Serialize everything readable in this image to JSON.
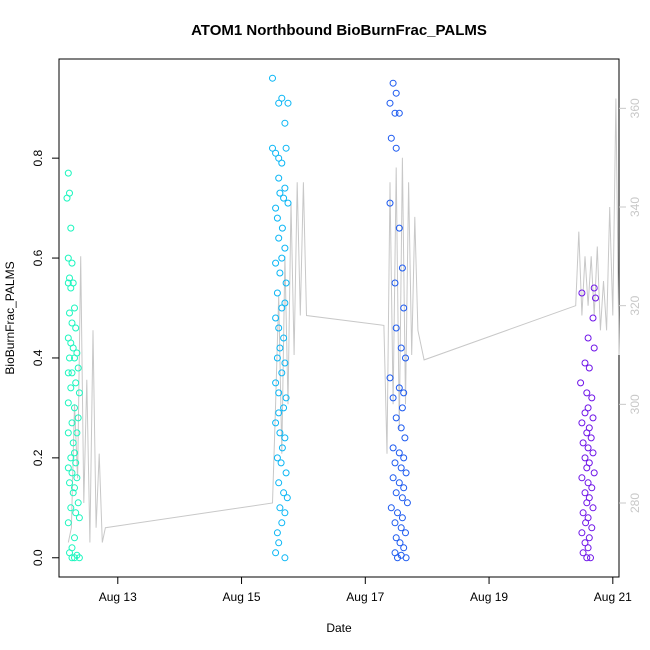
{
  "chart_data": {
    "type": "scatter",
    "title": "ATOM1 Northbound BioBurnFrac_PALMS",
    "xlabel": "Date",
    "ylabel": "BioBurnFrac_PALMS",
    "x_ticks": [
      "Aug 13",
      "Aug 15",
      "Aug 17",
      "Aug 19",
      "Aug 21"
    ],
    "x_tick_days": [
      13,
      15,
      17,
      19,
      21
    ],
    "xlim_days": [
      12.05,
      21.1
    ],
    "y_ticks": [
      0.0,
      0.2,
      0.4,
      0.6,
      0.8
    ],
    "y_tick_labels": [
      "0.0",
      "0.2",
      "0.4",
      "0.6",
      "0.8"
    ],
    "ylim": [
      -0.0385,
      0.9985
    ],
    "y2_ticks": [
      280,
      300,
      320,
      340,
      360
    ],
    "y2_tick_labels": [
      "280",
      "300",
      "320",
      "340",
      "360"
    ],
    "y2lim": [
      265,
      370
    ],
    "grid": false,
    "legend": "none",
    "line_color": "#c8c8c8",
    "secondary_series_line": [
      [
        12.2,
        272
      ],
      [
        12.25,
        275
      ],
      [
        12.3,
        300
      ],
      [
        12.35,
        285
      ],
      [
        12.4,
        330
      ],
      [
        12.45,
        280
      ],
      [
        12.5,
        305
      ],
      [
        12.55,
        272
      ],
      [
        12.6,
        315
      ],
      [
        12.65,
        275
      ],
      [
        12.7,
        290
      ],
      [
        12.75,
        272
      ],
      [
        12.8,
        275
      ],
      [
        15.5,
        280
      ],
      [
        15.55,
        300
      ],
      [
        15.6,
        322
      ],
      [
        15.65,
        290
      ],
      [
        15.7,
        330
      ],
      [
        15.75,
        300
      ],
      [
        15.8,
        341
      ],
      [
        15.85,
        310
      ],
      [
        15.9,
        345
      ],
      [
        15.95,
        318
      ],
      [
        16.0,
        345
      ],
      [
        16.05,
        318
      ],
      [
        17.3,
        316
      ],
      [
        17.35,
        290
      ],
      [
        17.4,
        345
      ],
      [
        17.45,
        300
      ],
      [
        17.5,
        348
      ],
      [
        17.55,
        295
      ],
      [
        17.6,
        350
      ],
      [
        17.65,
        300
      ],
      [
        17.7,
        345
      ],
      [
        17.75,
        310
      ],
      [
        17.8,
        338
      ],
      [
        17.85,
        315
      ],
      [
        17.9,
        312
      ],
      [
        17.95,
        309
      ],
      [
        20.4,
        320
      ],
      [
        20.45,
        335
      ],
      [
        20.5,
        318
      ],
      [
        20.55,
        330
      ],
      [
        20.6,
        320
      ],
      [
        20.65,
        330
      ],
      [
        20.7,
        318
      ],
      [
        20.75,
        332
      ],
      [
        20.8,
        315
      ],
      [
        20.85,
        325
      ],
      [
        20.9,
        315
      ],
      [
        20.95,
        340
      ],
      [
        21.0,
        318
      ],
      [
        21.05,
        362
      ],
      [
        21.1,
        310
      ]
    ],
    "series": [
      {
        "color": "#1af6be",
        "points": [
          [
            12.2,
            0.77
          ],
          [
            12.22,
            0.73
          ],
          [
            12.18,
            0.72
          ],
          [
            12.24,
            0.66
          ],
          [
            12.2,
            0.6
          ],
          [
            12.26,
            0.59
          ],
          [
            12.22,
            0.56
          ],
          [
            12.28,
            0.55
          ],
          [
            12.2,
            0.55
          ],
          [
            12.24,
            0.54
          ],
          [
            12.3,
            0.5
          ],
          [
            12.22,
            0.49
          ],
          [
            12.26,
            0.47
          ],
          [
            12.32,
            0.46
          ],
          [
            12.2,
            0.44
          ],
          [
            12.24,
            0.43
          ],
          [
            12.28,
            0.42
          ],
          [
            12.34,
            0.41
          ],
          [
            12.22,
            0.4
          ],
          [
            12.3,
            0.4
          ],
          [
            12.36,
            0.38
          ],
          [
            12.2,
            0.37
          ],
          [
            12.26,
            0.37
          ],
          [
            12.32,
            0.35
          ],
          [
            12.24,
            0.34
          ],
          [
            12.38,
            0.33
          ],
          [
            12.2,
            0.31
          ],
          [
            12.3,
            0.3
          ],
          [
            12.36,
            0.28
          ],
          [
            12.26,
            0.27
          ],
          [
            12.34,
            0.25
          ],
          [
            12.2,
            0.25
          ],
          [
            12.28,
            0.23
          ],
          [
            12.3,
            0.21
          ],
          [
            12.24,
            0.2
          ],
          [
            12.32,
            0.19
          ],
          [
            12.2,
            0.18
          ],
          [
            12.26,
            0.17
          ],
          [
            12.34,
            0.16
          ],
          [
            12.22,
            0.15
          ],
          [
            12.3,
            0.14
          ],
          [
            12.28,
            0.13
          ],
          [
            12.36,
            0.11
          ],
          [
            12.24,
            0.1
          ],
          [
            12.32,
            0.09
          ],
          [
            12.38,
            0.08
          ],
          [
            12.2,
            0.07
          ],
          [
            12.3,
            0.04
          ],
          [
            12.26,
            0.02
          ],
          [
            12.22,
            0.01
          ],
          [
            12.34,
            0.005
          ],
          [
            12.3,
            0.0
          ],
          [
            12.38,
            0.0
          ],
          [
            12.26,
            0.0
          ]
        ]
      },
      {
        "color": "#0ab6f5",
        "points": [
          [
            15.5,
            0.96
          ],
          [
            15.65,
            0.92
          ],
          [
            15.6,
            0.91
          ],
          [
            15.75,
            0.91
          ],
          [
            15.7,
            0.87
          ],
          [
            15.5,
            0.82
          ],
          [
            15.55,
            0.81
          ],
          [
            15.6,
            0.8
          ],
          [
            15.72,
            0.82
          ],
          [
            15.65,
            0.79
          ],
          [
            15.6,
            0.76
          ],
          [
            15.7,
            0.74
          ],
          [
            15.62,
            0.73
          ],
          [
            15.68,
            0.72
          ],
          [
            15.75,
            0.71
          ],
          [
            15.55,
            0.7
          ],
          [
            15.58,
            0.68
          ],
          [
            15.66,
            0.66
          ],
          [
            15.6,
            0.64
          ],
          [
            15.7,
            0.62
          ],
          [
            15.65,
            0.6
          ],
          [
            15.55,
            0.59
          ],
          [
            15.62,
            0.57
          ],
          [
            15.72,
            0.55
          ],
          [
            15.58,
            0.53
          ],
          [
            15.7,
            0.51
          ],
          [
            15.65,
            0.5
          ],
          [
            15.55,
            0.48
          ],
          [
            15.6,
            0.46
          ],
          [
            15.68,
            0.44
          ],
          [
            15.62,
            0.42
          ],
          [
            15.58,
            0.4
          ],
          [
            15.7,
            0.39
          ],
          [
            15.65,
            0.37
          ],
          [
            15.55,
            0.35
          ],
          [
            15.6,
            0.33
          ],
          [
            15.72,
            0.32
          ],
          [
            15.68,
            0.3
          ],
          [
            15.6,
            0.29
          ],
          [
            15.55,
            0.27
          ],
          [
            15.62,
            0.25
          ],
          [
            15.7,
            0.24
          ],
          [
            15.66,
            0.22
          ],
          [
            15.58,
            0.2
          ],
          [
            15.64,
            0.19
          ],
          [
            15.72,
            0.17
          ],
          [
            15.6,
            0.15
          ],
          [
            15.68,
            0.13
          ],
          [
            15.74,
            0.12
          ],
          [
            15.62,
            0.1
          ],
          [
            15.7,
            0.09
          ],
          [
            15.65,
            0.07
          ],
          [
            15.58,
            0.05
          ],
          [
            15.6,
            0.03
          ],
          [
            15.55,
            0.01
          ],
          [
            15.7,
            0.0
          ]
        ]
      },
      {
        "color": "#1b59f0",
        "points": [
          [
            17.45,
            0.95
          ],
          [
            17.5,
            0.93
          ],
          [
            17.4,
            0.91
          ],
          [
            17.48,
            0.89
          ],
          [
            17.55,
            0.89
          ],
          [
            17.42,
            0.84
          ],
          [
            17.5,
            0.82
          ],
          [
            17.4,
            0.71
          ],
          [
            17.55,
            0.66
          ],
          [
            17.6,
            0.58
          ],
          [
            17.48,
            0.55
          ],
          [
            17.62,
            0.5
          ],
          [
            17.5,
            0.46
          ],
          [
            17.58,
            0.42
          ],
          [
            17.65,
            0.4
          ],
          [
            17.4,
            0.36
          ],
          [
            17.55,
            0.34
          ],
          [
            17.62,
            0.33
          ],
          [
            17.45,
            0.32
          ],
          [
            17.6,
            0.3
          ],
          [
            17.5,
            0.28
          ],
          [
            17.58,
            0.26
          ],
          [
            17.64,
            0.24
          ],
          [
            17.45,
            0.22
          ],
          [
            17.55,
            0.21
          ],
          [
            17.62,
            0.2
          ],
          [
            17.48,
            0.19
          ],
          [
            17.58,
            0.18
          ],
          [
            17.66,
            0.17
          ],
          [
            17.45,
            0.16
          ],
          [
            17.55,
            0.15
          ],
          [
            17.62,
            0.14
          ],
          [
            17.5,
            0.13
          ],
          [
            17.6,
            0.12
          ],
          [
            17.68,
            0.11
          ],
          [
            17.42,
            0.1
          ],
          [
            17.52,
            0.09
          ],
          [
            17.6,
            0.08
          ],
          [
            17.48,
            0.07
          ],
          [
            17.58,
            0.06
          ],
          [
            17.65,
            0.05
          ],
          [
            17.5,
            0.04
          ],
          [
            17.56,
            0.03
          ],
          [
            17.62,
            0.02
          ],
          [
            17.48,
            0.01
          ],
          [
            17.58,
            0.005
          ],
          [
            17.66,
            0.0
          ],
          [
            17.52,
            0.0
          ]
        ]
      },
      {
        "color": "#6e13e8",
        "points": [
          [
            20.5,
            0.53
          ],
          [
            20.7,
            0.54
          ],
          [
            20.72,
            0.52
          ],
          [
            20.68,
            0.48
          ],
          [
            20.6,
            0.44
          ],
          [
            20.7,
            0.42
          ],
          [
            20.55,
            0.39
          ],
          [
            20.62,
            0.38
          ],
          [
            20.48,
            0.35
          ],
          [
            20.58,
            0.33
          ],
          [
            20.66,
            0.32
          ],
          [
            20.6,
            0.3
          ],
          [
            20.55,
            0.29
          ],
          [
            20.68,
            0.28
          ],
          [
            20.5,
            0.27
          ],
          [
            20.62,
            0.26
          ],
          [
            20.58,
            0.25
          ],
          [
            20.65,
            0.24
          ],
          [
            20.52,
            0.23
          ],
          [
            20.6,
            0.22
          ],
          [
            20.68,
            0.21
          ],
          [
            20.55,
            0.2
          ],
          [
            20.62,
            0.19
          ],
          [
            20.58,
            0.18
          ],
          [
            20.7,
            0.17
          ],
          [
            20.5,
            0.16
          ],
          [
            20.6,
            0.15
          ],
          [
            20.66,
            0.14
          ],
          [
            20.55,
            0.13
          ],
          [
            20.62,
            0.12
          ],
          [
            20.58,
            0.11
          ],
          [
            20.68,
            0.1
          ],
          [
            20.52,
            0.09
          ],
          [
            20.6,
            0.08
          ],
          [
            20.56,
            0.07
          ],
          [
            20.66,
            0.06
          ],
          [
            20.5,
            0.05
          ],
          [
            20.62,
            0.04
          ],
          [
            20.55,
            0.03
          ],
          [
            20.6,
            0.02
          ],
          [
            20.52,
            0.01
          ],
          [
            20.58,
            0.0
          ],
          [
            20.64,
            0.0
          ]
        ]
      }
    ]
  }
}
